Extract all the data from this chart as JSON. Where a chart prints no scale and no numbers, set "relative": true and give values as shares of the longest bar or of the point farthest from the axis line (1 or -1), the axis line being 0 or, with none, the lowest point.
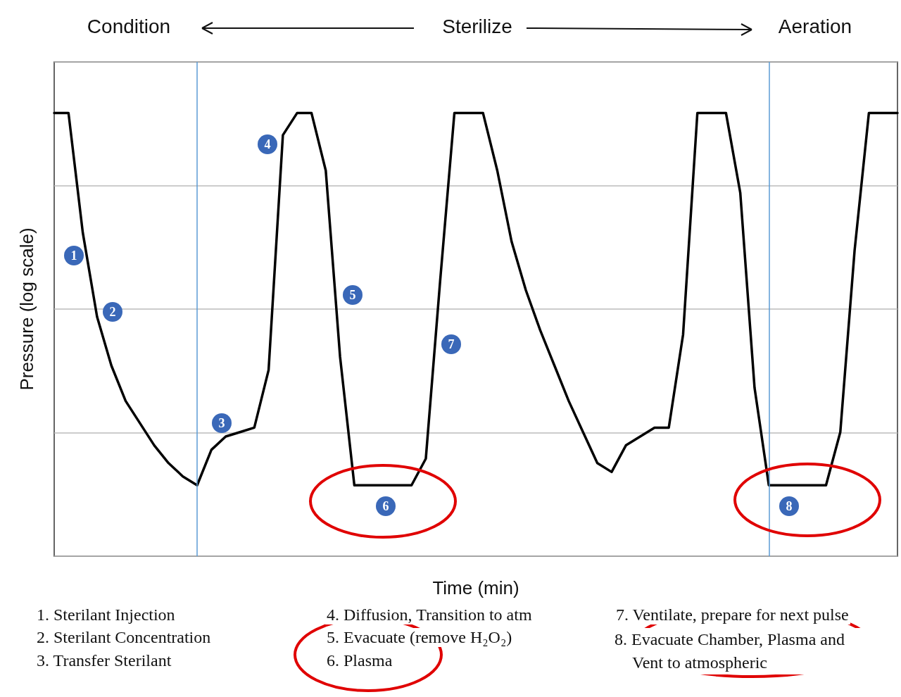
{
  "chart_data": {
    "type": "line",
    "xlabel": "Time (min)",
    "ylabel": "Pressure (log scale)",
    "relative": true,
    "grid": "y",
    "marker": "none",
    "line_style": "solid",
    "color": "#000000",
    "categories": [
      null,
      null,
      null,
      null,
      null,
      null,
      null,
      null,
      null,
      null,
      null,
      null,
      null,
      null,
      null,
      null,
      null,
      null,
      null,
      null,
      null,
      null,
      null,
      null,
      null,
      null,
      null,
      null,
      null,
      null,
      null,
      null,
      null,
      null,
      null,
      null,
      null,
      null,
      null,
      null,
      null,
      null,
      null,
      null,
      null,
      null,
      null,
      null,
      null,
      null,
      null,
      null,
      null,
      null,
      null,
      null,
      null,
      null,
      null,
      null
    ],
    "values": [
      1.0,
      1.0,
      0.73,
      0.54,
      0.43,
      0.35,
      0.3,
      0.25,
      0.21,
      0.18,
      0.16,
      0.24,
      0.27,
      0.28,
      0.29,
      0.42,
      0.95,
      1.0,
      1.0,
      0.87,
      0.45,
      0.16,
      0.16,
      0.16,
      0.16,
      0.16,
      0.22,
      0.62,
      1.0,
      1.0,
      1.0,
      0.87,
      0.71,
      0.6,
      0.51,
      0.43,
      0.35,
      0.28,
      0.21,
      0.19,
      0.25,
      0.27,
      0.29,
      0.29,
      0.5,
      1.0,
      1.0,
      1.0,
      0.82,
      0.38,
      0.16,
      0.16,
      0.16,
      0.16,
      0.16,
      0.28,
      0.69,
      1.0,
      1.0,
      1.0
    ],
    "annotations": [
      "Condition",
      "Sterilize",
      "Aeration",
      "1",
      "2",
      "3",
      "4",
      "5",
      "6",
      "7",
      "8",
      "1.  Sterilant Injection",
      "2.  Sterilant Concentration",
      "3.  Transfer Sterilant",
      "4.  Diffusion, Transition to atm",
      "5.  Evacuate (remove H₂O₂)",
      "6.  Plasma",
      "7.  Ventilate, prepare for next pulse",
      "8.  Evacuate Chamber, Plasma and Vent to atmospheric"
    ]
  }
}
